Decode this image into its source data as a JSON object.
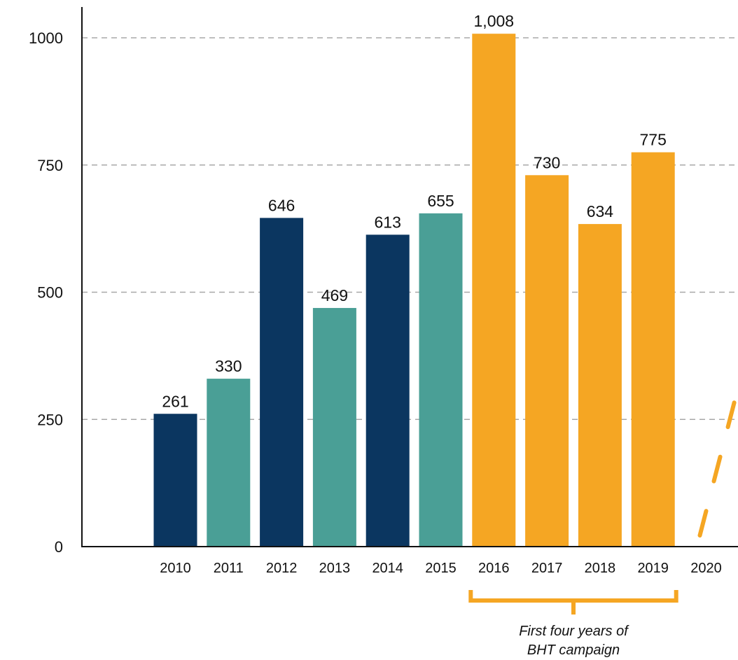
{
  "chart_data": {
    "type": "bar",
    "categories": [
      "2010",
      "2011",
      "2012",
      "2013",
      "2014",
      "2015",
      "2016",
      "2017",
      "2018",
      "2019",
      "2020"
    ],
    "values": [
      261,
      330,
      646,
      469,
      613,
      655,
      1008,
      730,
      634,
      775,
      null
    ],
    "value_labels": [
      "261",
      "330",
      "646",
      "469",
      "613",
      "655",
      "1,008",
      "730",
      "634",
      "775",
      ""
    ],
    "bar_colors": [
      "#0b3660",
      "#4a9f96",
      "#0b3660",
      "#4a9f96",
      "#0b3660",
      "#4a9f96",
      "#f5a623",
      "#f5a623",
      "#f5a623",
      "#f5a623",
      ""
    ],
    "ylim": [
      0,
      1000
    ],
    "yticks": [
      0,
      250,
      500,
      750,
      1000
    ],
    "ytick_labels": [
      "0",
      "250",
      "500",
      "750",
      "1000"
    ],
    "grid": true,
    "title": "",
    "xlabel": "",
    "ylabel": "",
    "annotation": {
      "text_line1": "First four years of",
      "text_line2": "BHT campaign",
      "bracket_from": "2016",
      "bracket_to": "2019",
      "color": "#f5a623"
    },
    "trend_2020": {
      "style": "dashed",
      "color": "#f5a623",
      "from_value": 0,
      "to_value": 330
    }
  }
}
